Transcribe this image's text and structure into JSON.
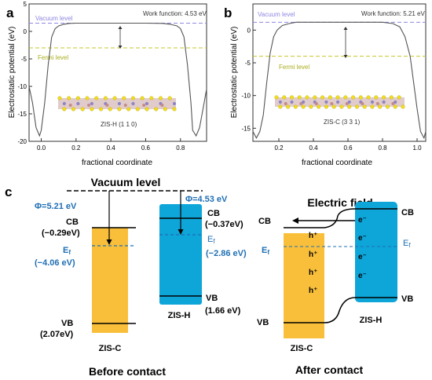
{
  "chart_data": [
    {
      "type": "line",
      "panel_label": "a",
      "xlabel": "fractional coordinate",
      "ylabel": "Electrostatic potential (eV)",
      "xlim": [
        -0.07,
        0.95
      ],
      "ylim": [
        -20,
        5
      ],
      "xticks": [
        "0.0",
        "0.2",
        "0.4",
        "0.6",
        "0.8"
      ],
      "yticks": [
        "5",
        "0",
        "-5",
        "-10",
        "-15",
        "-20"
      ],
      "vacuum_level": 1.5,
      "fermi_level": -3.0,
      "vacuum_label": "Vacuum level",
      "fermi_label": "Fermi level",
      "work_function_label": "Work function: 4.53 eV",
      "structure_label": "ZIS-H (1 1 0)",
      "x": [
        -0.07,
        -0.05,
        -0.03,
        -0.01,
        0.0,
        0.02,
        0.04,
        0.06,
        0.08,
        0.1,
        0.13,
        0.16,
        0.2,
        0.3,
        0.44,
        0.6,
        0.7,
        0.74,
        0.78,
        0.8,
        0.82,
        0.84,
        0.86,
        0.87,
        0.89,
        0.91,
        0.93,
        0.95
      ],
      "y": [
        -10.0,
        -13.0,
        -17.5,
        -19.0,
        -18.0,
        -13.0,
        -6.0,
        -1.0,
        0.5,
        1.0,
        1.3,
        1.45,
        1.5,
        1.5,
        1.5,
        1.5,
        1.45,
        1.3,
        1.0,
        0.5,
        -1.0,
        -6.0,
        -13.0,
        -18.0,
        -19.0,
        -17.5,
        -14.0,
        -10.5
      ]
    },
    {
      "type": "line",
      "panel_label": "b",
      "xlabel": "fractional coordinate",
      "ylabel": "Electrostatic potential (eV)",
      "xlim": [
        0.05,
        1.05
      ],
      "ylim": [
        -17,
        4
      ],
      "xticks": [
        "0.2",
        "0.4",
        "0.6",
        "0.8",
        "1.0"
      ],
      "yticks": [
        "0",
        "-5",
        "-10",
        "-15"
      ],
      "vacuum_level": 1.2,
      "fermi_level": -4.0,
      "fermi_label": "Fermi level",
      "vacuum_label": "Vacuum level",
      "work_function_label": "Work function: 5.21 eV",
      "structure_label": "ZIS-C (3 3 1)",
      "x": [
        0.05,
        0.07,
        0.09,
        0.11,
        0.13,
        0.15,
        0.17,
        0.19,
        0.22,
        0.26,
        0.3,
        0.4,
        0.6,
        0.8,
        0.86,
        0.9,
        0.93,
        0.96,
        0.98,
        1.0,
        1.02,
        1.04,
        1.05
      ],
      "y": [
        -15.5,
        -16.5,
        -15.5,
        -13.0,
        -8.0,
        -3.5,
        -1.0,
        0.0,
        0.7,
        1.0,
        1.2,
        1.2,
        1.2,
        1.2,
        1.0,
        0.5,
        -1.0,
        -4.0,
        -8.0,
        -12.0,
        -15.5,
        -16.5,
        -15.5
      ]
    }
  ],
  "panel_c": {
    "label": "c",
    "vacuum_level": "Vacuum level",
    "zisc_phi": "Φ=5.21 eV",
    "zish_phi": "Φ=4.53 eV",
    "zisc_cb": "CB",
    "zisc_cb_value": "(−0.29eV)",
    "zisc_ef_main": "E",
    "zisc_ef_sub": "f",
    "zisc_ef_value": "(−4.06 eV)",
    "zisc_vb": "VB",
    "zisc_vb_value": "(2.07eV)",
    "zisc_name": "ZIS-C",
    "zish_cb": "CB",
    "zish_cb_value": "(−0.37eV)",
    "zish_ef_main": "E",
    "zish_ef_sub": "f",
    "zish_ef_value": "(−2.86 eV)",
    "zish_vb": "VB",
    "zish_vb_value": "(1.66 eV)",
    "zish_name": "ZIS-H",
    "before_caption": "Before contact",
    "electric_field": "Electric field",
    "after_cb_left": "CB",
    "after_cb_right": "CB",
    "after_ef_left_main": "E",
    "after_ef_left_sub": "f",
    "after_ef_right_main": "E",
    "after_ef_right_sub": "f",
    "after_vb_left": "VB",
    "after_vb_right": "VB",
    "holes": [
      "h⁺",
      "h⁺",
      "h⁺",
      "h⁺"
    ],
    "electrons": [
      "e⁻",
      "e⁻",
      "e⁻",
      "e⁻"
    ],
    "after_zisc_name": "ZIS-C",
    "after_zish_name": "ZIS-H",
    "after_caption": "After contact",
    "colors": {
      "zisc_band": "#f9bf3b",
      "zish_band": "#0ea5d8",
      "fermi_text": "#1f6fb4",
      "vacuum_dash": "#8d86e0",
      "fermi_dash": "#c3c72a"
    }
  }
}
